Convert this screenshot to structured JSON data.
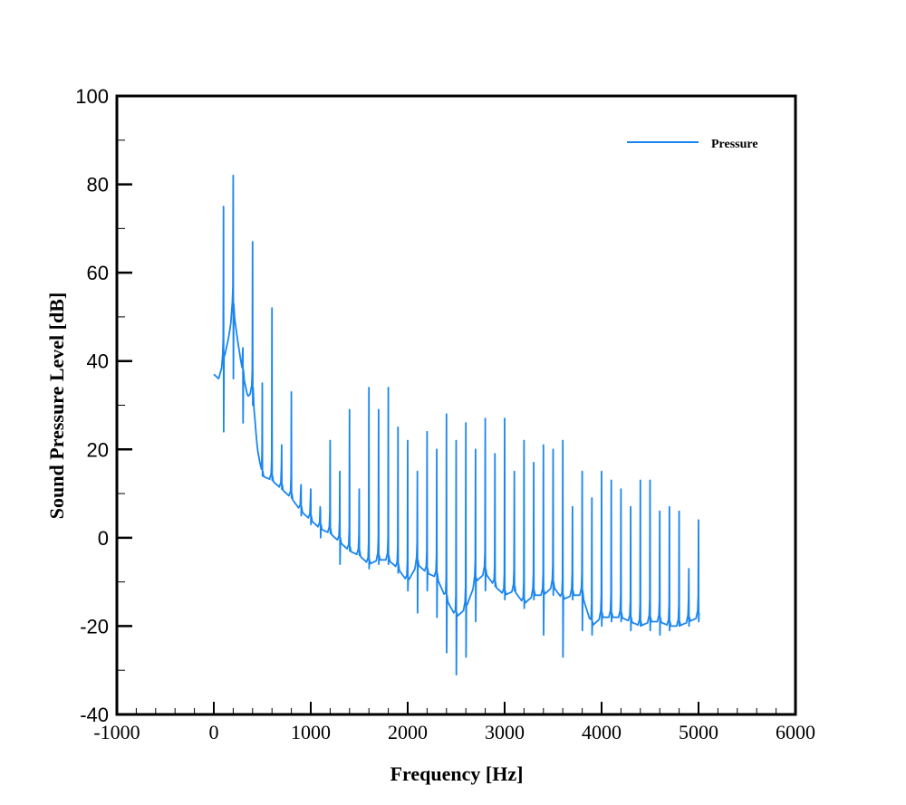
{
  "chart_data": {
    "type": "line",
    "title": "",
    "xlabel": "Frequency [Hz]",
    "ylabel": "Sound Pressure Level [dB]",
    "xlim": [
      -1000,
      6000
    ],
    "ylim": [
      -40,
      100
    ],
    "xticks": [
      -1000,
      0,
      1000,
      2000,
      3000,
      4000,
      5000,
      6000
    ],
    "xtick_labels": [
      "-1000",
      "0",
      "1000",
      "2000",
      "3000",
      "4000",
      "5000",
      "6000"
    ],
    "yticks": [
      -40,
      -20,
      0,
      20,
      40,
      60,
      80,
      100
    ],
    "ytick_labels": [
      "-40",
      "-20",
      "0",
      "20",
      "40",
      "60",
      "80",
      "100"
    ],
    "x_minor_step": 200,
    "y_minor_step": 10,
    "grid": false,
    "legend": {
      "position": "upper right",
      "entries": [
        "Pressure"
      ]
    },
    "series": [
      {
        "name": "Pressure",
        "color": "#1a86f0",
        "baseline": {
          "x": [
            0,
            50,
            100,
            150,
            200,
            250,
            300,
            350,
            400,
            450,
            500,
            600,
            700,
            800,
            900,
            1000,
            1100,
            1200,
            1300,
            1400,
            1500,
            1600,
            1700,
            1800,
            1900,
            2000,
            2100,
            2200,
            2300,
            2400,
            2500,
            2600,
            2700,
            2800,
            2900,
            3000,
            3100,
            3200,
            3300,
            3400,
            3500,
            3600,
            3700,
            3800,
            3900,
            4000,
            4100,
            4200,
            4300,
            4400,
            4500,
            4600,
            4700,
            4800,
            4900,
            5000
          ],
          "y": [
            37,
            36,
            40,
            45,
            52,
            44,
            37,
            32,
            33,
            20,
            14,
            13,
            11,
            9,
            6,
            4,
            2,
            1,
            -1,
            -3,
            -4,
            -6,
            -5,
            -5,
            -7,
            -10,
            -6,
            -8,
            -9,
            -14,
            -18,
            -16,
            -10,
            -8,
            -11,
            -13,
            -12,
            -15,
            -13,
            -13,
            -11,
            -14,
            -13,
            -13,
            -20,
            -18,
            -18,
            -18,
            -19,
            -20,
            -19,
            -19,
            -20,
            -20,
            -19,
            -18
          ]
        },
        "peaks": {
          "x": [
            100,
            200,
            300,
            400,
            500,
            600,
            700,
            800,
            900,
            1000,
            1100,
            1200,
            1300,
            1400,
            1500,
            1600,
            1700,
            1800,
            1900,
            2000,
            2100,
            2200,
            2300,
            2400,
            2500,
            2600,
            2700,
            2800,
            2900,
            3000,
            3100,
            3200,
            3300,
            3400,
            3500,
            3600,
            3700,
            3800,
            3900,
            4000,
            4100,
            4200,
            4300,
            4400,
            4500,
            4600,
            4700,
            4800,
            4900,
            5000
          ],
          "top": [
            75,
            82,
            43,
            67,
            35,
            52,
            21,
            33,
            12,
            11,
            6,
            22,
            15,
            29,
            11,
            34,
            29,
            34,
            25,
            22,
            15,
            24,
            20,
            28,
            22,
            26,
            20,
            27,
            19,
            27,
            15,
            22,
            17,
            21,
            20,
            22,
            7,
            15,
            9,
            15,
            13,
            11,
            7,
            13,
            13,
            6,
            7,
            6,
            -7,
            4
          ],
          "dip": [
            24,
            36,
            26,
            30,
            14,
            13,
            11,
            9,
            5,
            3,
            0,
            1,
            -6,
            -3,
            -4,
            -7,
            -6,
            -6,
            -8,
            -12,
            -17,
            -12,
            -18,
            -26,
            -31,
            -27,
            -19,
            -12,
            -11,
            -14,
            -12,
            -16,
            -14,
            -22,
            -13,
            -27,
            -14,
            -21,
            -22,
            -20,
            -19,
            -19,
            -21,
            -20,
            -21,
            -22,
            -21,
            -20,
            -20,
            -19
          ]
        }
      }
    ]
  }
}
